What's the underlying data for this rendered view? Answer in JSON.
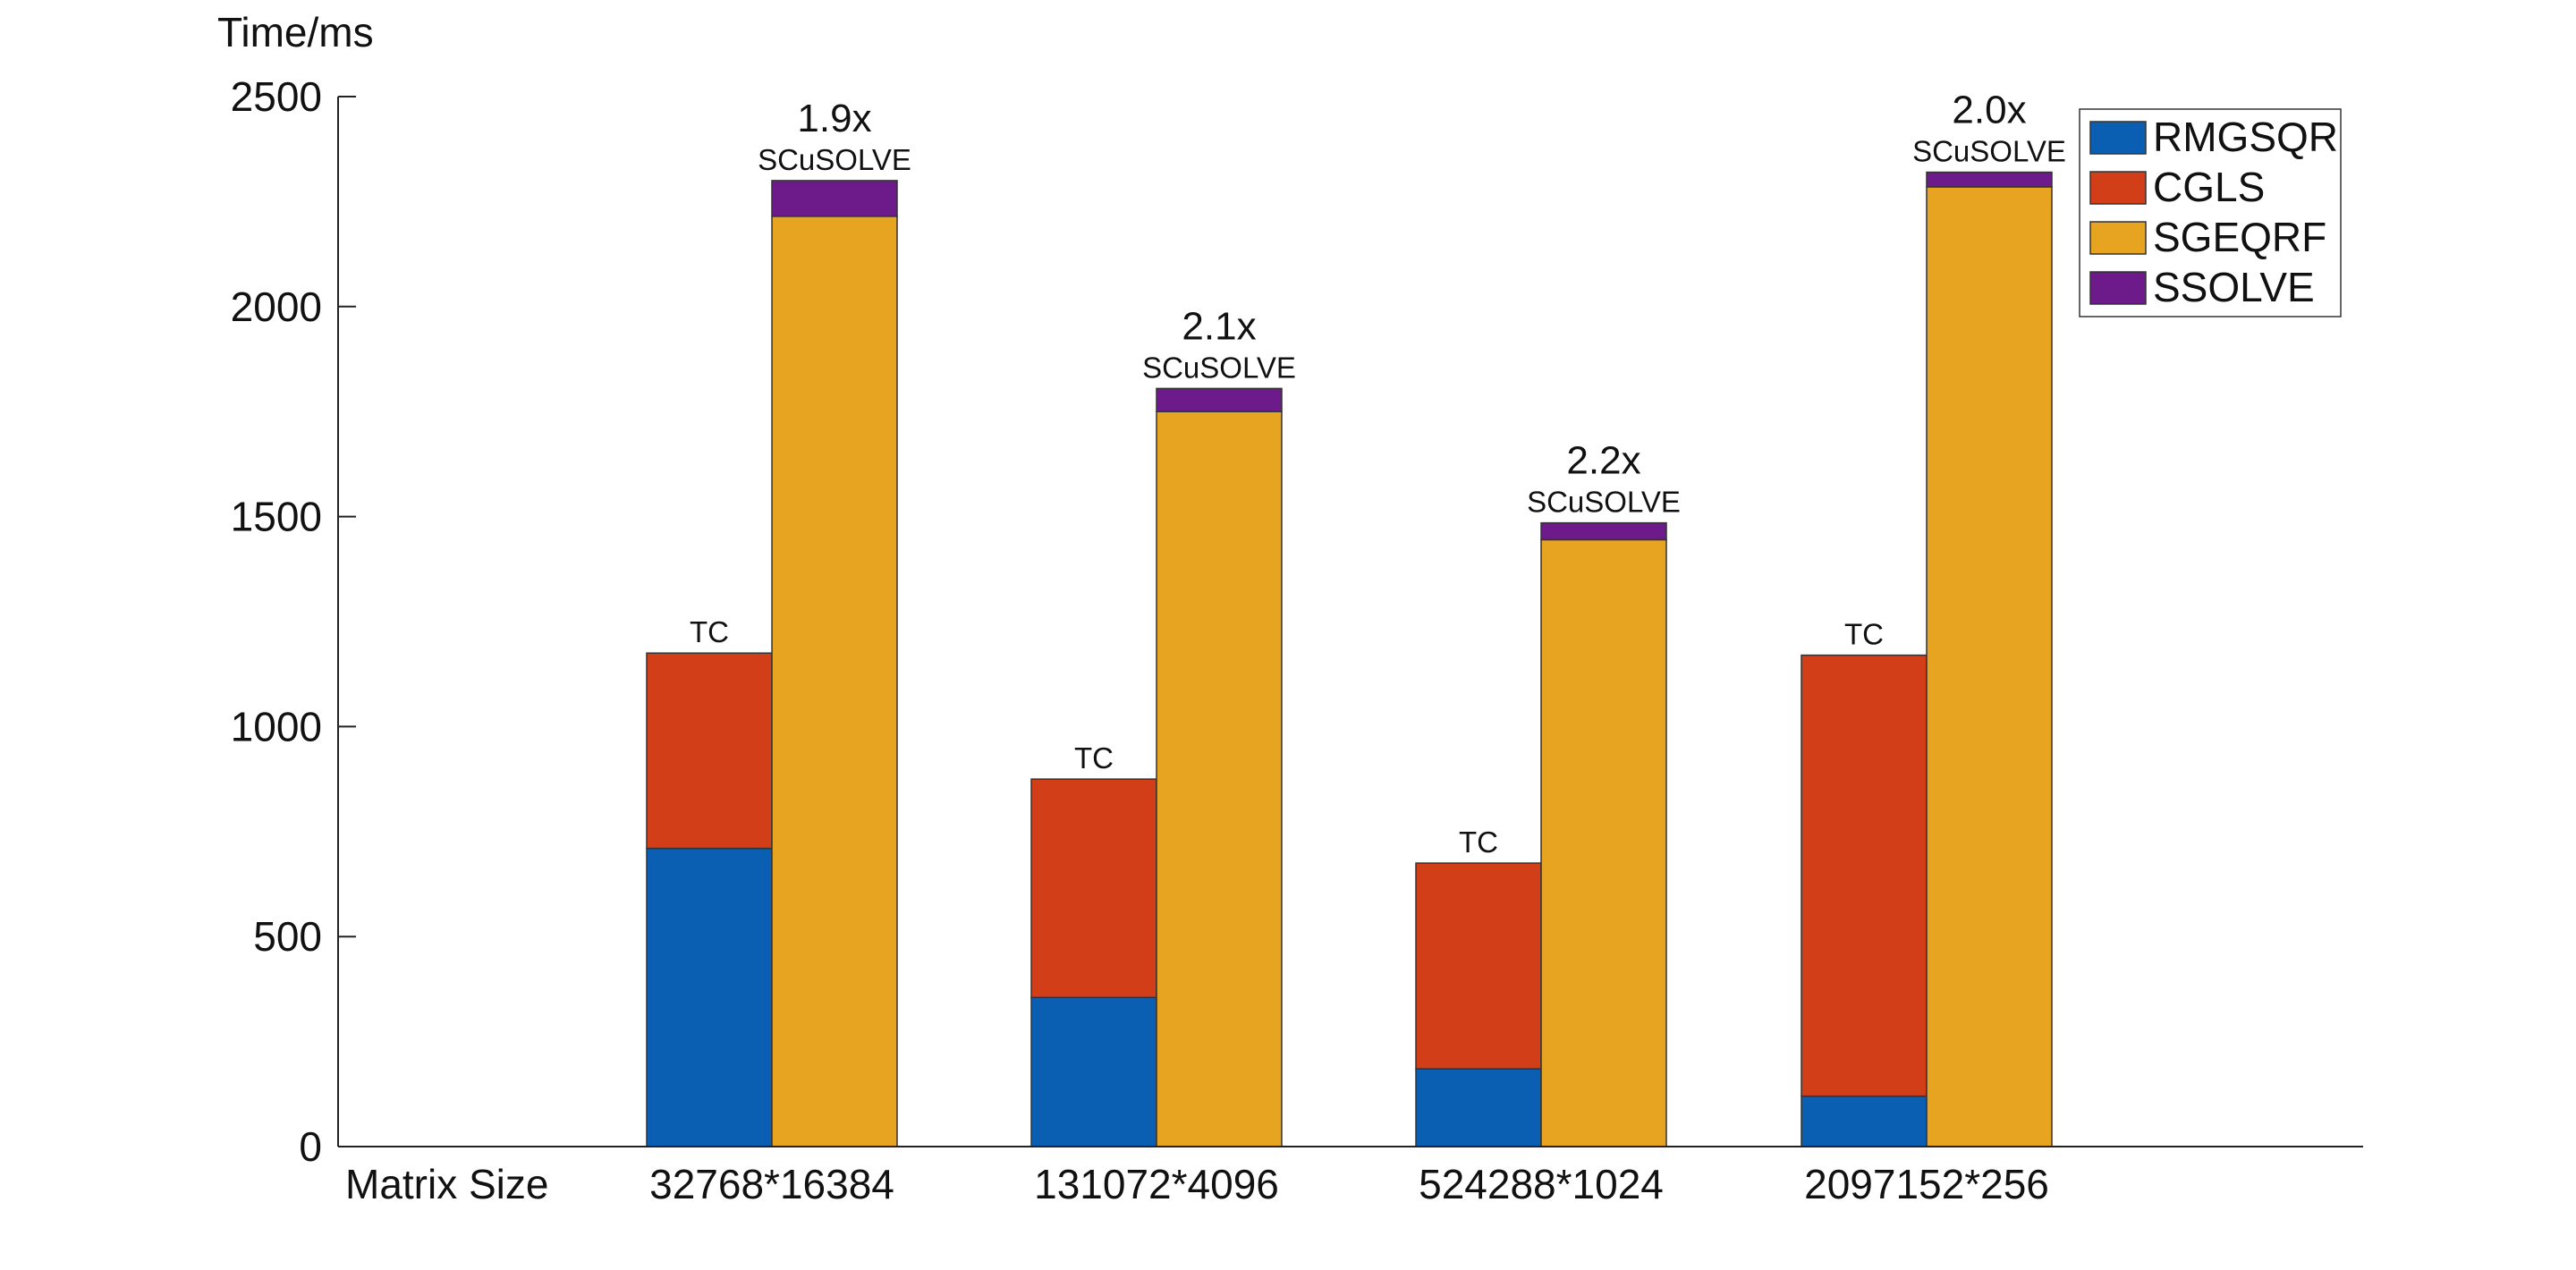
{
  "chart_data": {
    "type": "bar",
    "stacked": true,
    "ylabel": "Time/ms",
    "xlabel": "Matrix Size",
    "ylim": [
      0,
      2500
    ],
    "yticks": [
      0,
      500,
      1000,
      1500,
      2000,
      2500
    ],
    "categories": [
      "32768*16384",
      "131072*4096",
      "524288*1024",
      "2097152*256"
    ],
    "legend_position": "top-right",
    "series": [
      {
        "name": "RMGSQR",
        "color": "#0b5fb3",
        "stack": "TC",
        "values": [
          710,
          355,
          185,
          120
        ]
      },
      {
        "name": "CGLS",
        "color": "#d13e18",
        "stack": "TC",
        "values": [
          465,
          520,
          490,
          1050
        ]
      },
      {
        "name": "SGEQRF",
        "color": "#e6a420",
        "stack": "SCuSOLVE",
        "values": [
          2215,
          1750,
          1445,
          2285
        ]
      },
      {
        "name": "SSOLVE",
        "color": "#6d1a8a",
        "stack": "SCuSOLVE",
        "values": [
          85,
          55,
          40,
          35
        ]
      }
    ],
    "stack_labels": {
      "TC": "TC",
      "SCuSOLVE": "SCuSOLVE"
    },
    "speedups": [
      "1.9x",
      "2.1x",
      "2.2x",
      "2.0x"
    ]
  }
}
